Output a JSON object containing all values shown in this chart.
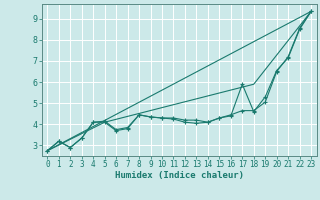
{
  "xlabel": "Humidex (Indice chaleur)",
  "background_color": "#cce9e9",
  "grid_color": "#ffffff",
  "line_color": "#1a7a6e",
  "xlim": [
    -0.5,
    23.5
  ],
  "ylim": [
    2.5,
    9.7
  ],
  "xticks": [
    0,
    1,
    2,
    3,
    4,
    5,
    6,
    7,
    8,
    9,
    10,
    11,
    12,
    13,
    14,
    15,
    16,
    17,
    18,
    19,
    20,
    21,
    22,
    23
  ],
  "yticks": [
    3,
    4,
    5,
    6,
    7,
    8,
    9
  ],
  "series": [
    {
      "x": [
        0,
        1,
        2,
        3,
        4,
        5,
        6,
        7,
        8,
        9,
        10,
        11,
        12,
        13,
        14,
        15,
        16,
        17,
        18,
        19,
        20,
        21,
        22,
        23
      ],
      "y": [
        2.75,
        3.2,
        2.9,
        3.35,
        4.1,
        4.15,
        3.75,
        3.85,
        4.45,
        4.35,
        4.3,
        4.3,
        4.2,
        4.2,
        4.1,
        4.3,
        4.4,
        5.9,
        4.6,
        5.3,
        6.55,
        7.15,
        8.5,
        9.35
      ],
      "marker": true
    },
    {
      "x": [
        0,
        1,
        2,
        3,
        4,
        5,
        6,
        7,
        8,
        9,
        10,
        11,
        12,
        13,
        14,
        15,
        16,
        17,
        18,
        19,
        20,
        21,
        22,
        23
      ],
      "y": [
        2.75,
        3.2,
        2.9,
        3.35,
        4.1,
        4.1,
        3.7,
        3.8,
        4.45,
        4.35,
        4.3,
        4.25,
        4.1,
        4.05,
        4.1,
        4.3,
        4.45,
        4.65,
        4.65,
        5.05,
        6.5,
        7.2,
        8.55,
        9.35
      ],
      "marker": true
    },
    {
      "x": [
        0,
        23
      ],
      "y": [
        2.75,
        9.35
      ],
      "marker": false
    },
    {
      "x": [
        0,
        5,
        18,
        23
      ],
      "y": [
        2.75,
        4.1,
        5.9,
        9.35
      ],
      "marker": false
    }
  ]
}
